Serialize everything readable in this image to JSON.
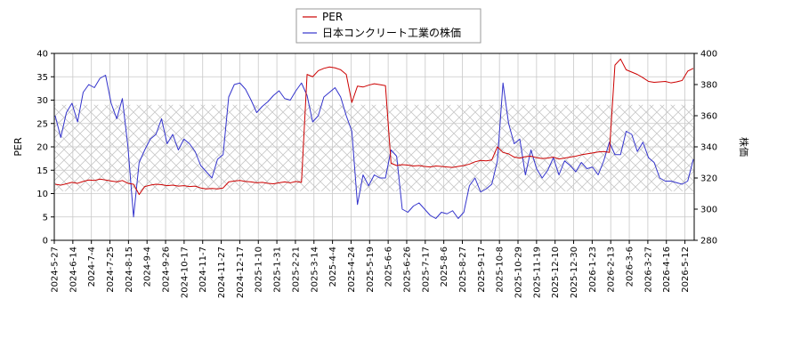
{
  "chart_data": {
    "type": "line",
    "title": "",
    "xlabel": "",
    "ylabel_left": "PER",
    "ylabel_right": "株価",
    "ylim_left": [
      0,
      40
    ],
    "ylim_right": [
      280,
      400
    ],
    "yticks_left": [
      0,
      5,
      10,
      15,
      20,
      25,
      30,
      35,
      40
    ],
    "yticks_right": [
      280,
      300,
      320,
      340,
      360,
      380,
      400
    ],
    "x_ticks": [
      "2024-5-27",
      "2024-6-14",
      "2024-7-4",
      "2024-7-25",
      "2024-8-15",
      "2024-9-4",
      "2024-9-26",
      "2024-10-17",
      "2024-11-7",
      "2024-11-27",
      "2024-12-17",
      "2025-1-10",
      "2025-1-31",
      "2025-2-21",
      "2025-3-14",
      "2025-4-4",
      "2025-4-24",
      "2025-5-19",
      "2025-6-6",
      "2025-6-26",
      "2025-7-17",
      "2025-8-6",
      "2025-8-27",
      "2025-9-17",
      "2025-10-8",
      "2025-10-29",
      "2025-11-19",
      "2025-12-10",
      "2025-12-30",
      "2026-1-23",
      "2026-2-13",
      "2026-3-6",
      "2026-3-27",
      "2026-4-16",
      "2026-5-12"
    ],
    "grid": true,
    "legend_position": "top-center",
    "band_left": [
      10.5,
      29
    ],
    "colors": {
      "per": "#cc0000",
      "price": "#3333cc"
    },
    "series": [
      {
        "name": "PER",
        "axis": "left",
        "values": [
          12.0,
          11.8,
          12.1,
          12.4,
          12.2,
          12.6,
          12.9,
          12.8,
          13.1,
          12.9,
          12.7,
          12.5,
          12.8,
          12.2,
          12.0,
          9.8,
          11.5,
          11.8,
          12.0,
          11.9,
          11.7,
          11.8,
          11.6,
          11.7,
          11.5,
          11.6,
          11.2,
          11.0,
          11.1,
          11.0,
          11.2,
          12.5,
          12.7,
          12.8,
          12.6,
          12.5,
          12.3,
          12.4,
          12.2,
          12.1,
          12.3,
          12.5,
          12.3,
          12.6,
          12.4,
          35.5,
          35.0,
          36.3,
          36.8,
          37.1,
          36.9,
          36.5,
          35.5,
          29.5,
          33.0,
          32.8,
          33.2,
          33.5,
          33.3,
          33.1,
          16.5,
          16.0,
          16.2,
          16.1,
          15.9,
          16.0,
          15.8,
          15.7,
          15.9,
          15.8,
          15.7,
          15.6,
          15.8,
          16.0,
          16.3,
          16.8,
          17.1,
          17.0,
          17.2,
          20.0,
          18.8,
          18.5,
          17.8,
          17.6,
          17.9,
          18.0,
          17.7,
          17.5,
          17.6,
          17.8,
          17.4,
          17.6,
          17.8,
          18.0,
          18.3,
          18.5,
          18.7,
          18.9,
          19.0,
          18.8,
          37.5,
          38.8,
          36.5,
          36.0,
          35.5,
          34.8,
          34.0,
          33.8,
          33.9,
          34.0,
          33.7,
          33.9,
          34.2,
          36.2,
          36.8
        ]
      },
      {
        "name": "日本コンクリート工業の株価",
        "axis": "right",
        "values": [
          360,
          346,
          362,
          368,
          356,
          375,
          380,
          378,
          384,
          386,
          368,
          358,
          371,
          340,
          295,
          330,
          338,
          345,
          348,
          358,
          342,
          348,
          338,
          345,
          342,
          337,
          328,
          324,
          320,
          332,
          335,
          372,
          380,
          381,
          377,
          370,
          362,
          366,
          369,
          373,
          376,
          371,
          370,
          376,
          381,
          373,
          356,
          360,
          372,
          375,
          378,
          372,
          360,
          350,
          303,
          322,
          315,
          322,
          320,
          320,
          338,
          334,
          300,
          298,
          302,
          304,
          300,
          296,
          294,
          298,
          297,
          299,
          294,
          298,
          315,
          320,
          311,
          313,
          316,
          331,
          381,
          355,
          342,
          345,
          322,
          338,
          326,
          320,
          325,
          333,
          322,
          331,
          328,
          324,
          330,
          326,
          327,
          322,
          331,
          343,
          335,
          335,
          350,
          348,
          337,
          343,
          333,
          330,
          320,
          318,
          318,
          317,
          316,
          318,
          332
        ]
      }
    ]
  },
  "legend": {
    "per_label": "PER",
    "price_label": "日本コンクリート工業の株価"
  }
}
